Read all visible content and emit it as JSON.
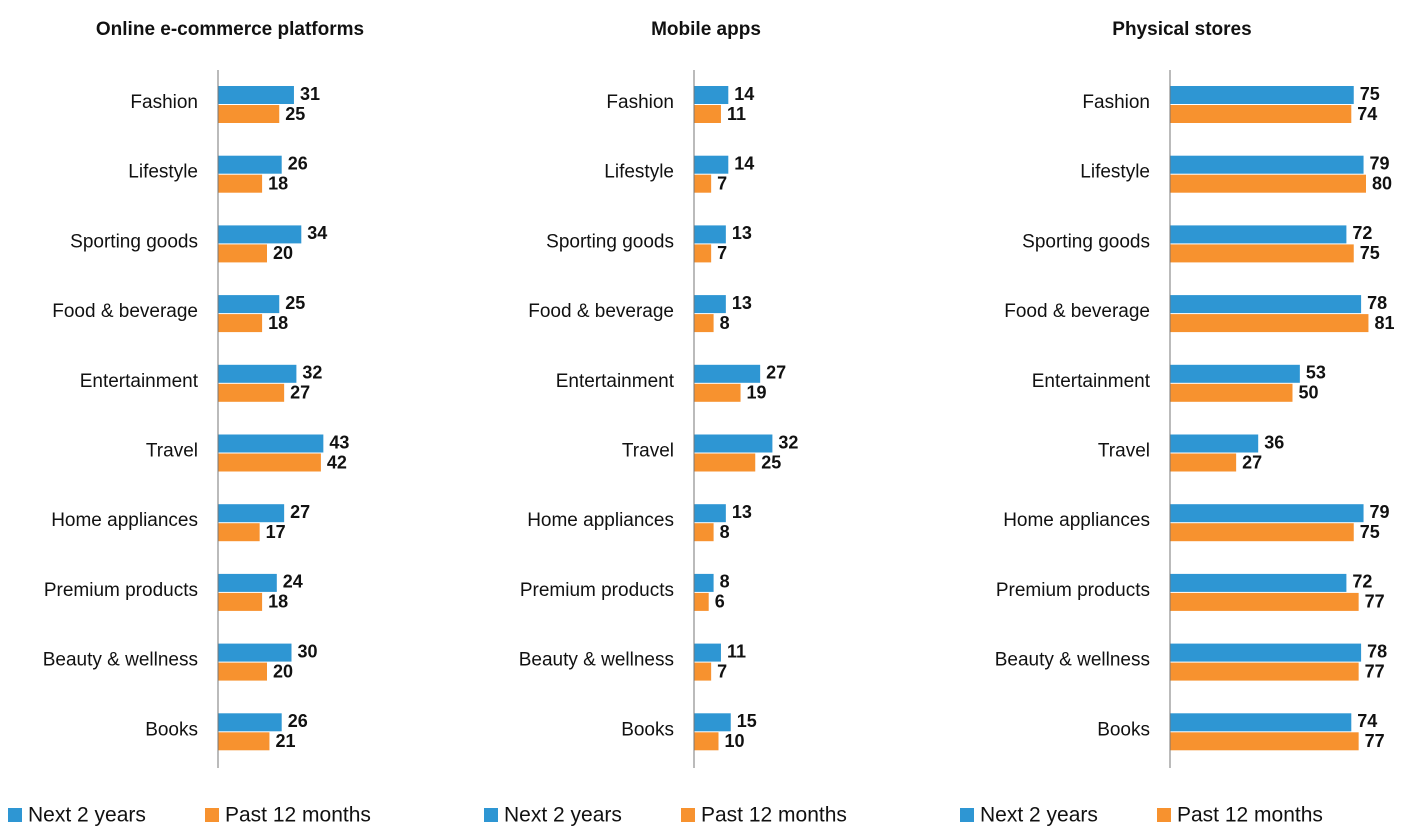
{
  "chart_data": [
    {
      "type": "bar",
      "title": "Online e-commerce platforms",
      "categories": [
        "Fashion",
        "Lifestyle",
        "Sporting goods",
        "Food & beverage",
        "Entertainment",
        "Travel",
        "Home appliances",
        "Premium products",
        "Beauty & wellness",
        "Books"
      ],
      "series": [
        {
          "name": "Next 2 years",
          "color": "#2e96d3",
          "values": [
            31,
            26,
            34,
            25,
            32,
            43,
            27,
            24,
            30,
            26
          ]
        },
        {
          "name": "Past 12 months",
          "color": "#f7922f",
          "values": [
            25,
            18,
            20,
            18,
            27,
            42,
            17,
            18,
            20,
            21
          ]
        }
      ],
      "xlim": [
        0,
        100
      ]
    },
    {
      "type": "bar",
      "title": "Mobile apps",
      "categories": [
        "Fashion",
        "Lifestyle",
        "Sporting goods",
        "Food & beverage",
        "Entertainment",
        "Travel",
        "Home appliances",
        "Premium products",
        "Beauty & wellness",
        "Books"
      ],
      "series": [
        {
          "name": "Next 2 years",
          "color": "#2e96d3",
          "values": [
            14,
            14,
            13,
            13,
            27,
            32,
            13,
            8,
            11,
            15
          ]
        },
        {
          "name": "Past 12 months",
          "color": "#f7922f",
          "values": [
            11,
            7,
            7,
            8,
            19,
            25,
            8,
            6,
            7,
            10
          ]
        }
      ],
      "xlim": [
        0,
        100
      ]
    },
    {
      "type": "bar",
      "title": "Physical stores",
      "categories": [
        "Fashion",
        "Lifestyle",
        "Sporting goods",
        "Food & beverage",
        "Entertainment",
        "Travel",
        "Home appliances",
        "Premium products",
        "Beauty & wellness",
        "Books"
      ],
      "series": [
        {
          "name": "Next 2 years",
          "color": "#2e96d3",
          "values": [
            75,
            79,
            72,
            78,
            53,
            36,
            79,
            72,
            78,
            74
          ]
        },
        {
          "name": "Past 12 months",
          "color": "#f7922f",
          "values": [
            74,
            80,
            75,
            81,
            50,
            27,
            75,
            77,
            77,
            77
          ]
        }
      ],
      "xlim": [
        0,
        100
      ]
    }
  ]
}
